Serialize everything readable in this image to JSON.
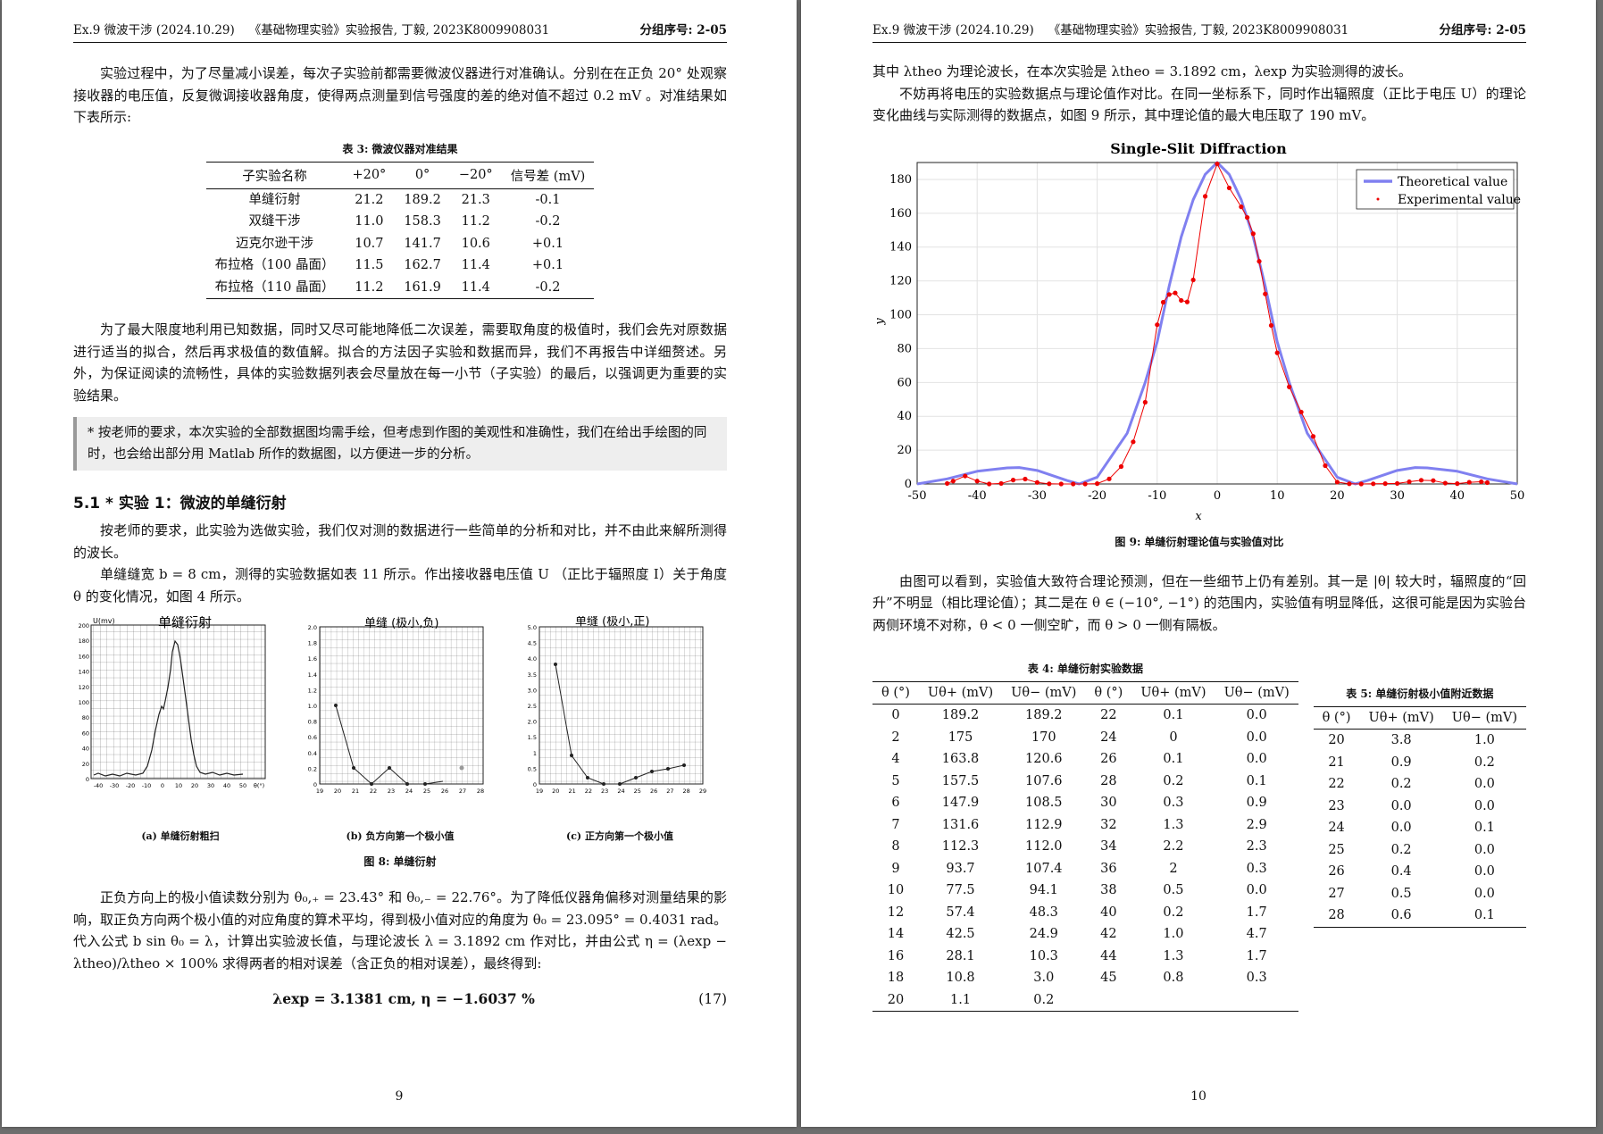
{
  "header": {
    "left1": "Ex.9 微波干涉 (2024.10.29)",
    "left2": "《基础物理实验》实验报告, 丁毅, 2023K8009908031",
    "right": "分组序号: 2-05"
  },
  "left": {
    "p1": "实验过程中，为了尽量减小误差，每次子实验前都需要微波仪器进行对准确认。分别在在正负 20° 处观察接收器的电压值，反复微调接收器角度，使得两点测量到信号强度的差的绝对值不超过 0.2 mV 。对准结果如下表所示:",
    "table3": {
      "caption": "表 3: 微波仪器对准结果",
      "headers": [
        "子实验名称",
        "+20°",
        "0°",
        "−20°",
        "信号差 (mV)"
      ],
      "rows": [
        [
          "单缝衍射",
          "21.2",
          "189.2",
          "21.3",
          "-0.1"
        ],
        [
          "双缝干涉",
          "11.0",
          "158.3",
          "11.2",
          "-0.2"
        ],
        [
          "迈克尔逊干涉",
          "10.7",
          "141.7",
          "10.6",
          "+0.1"
        ],
        [
          "布拉格（100 晶面）",
          "11.5",
          "162.7",
          "11.4",
          "+0.1"
        ],
        [
          "布拉格（110 晶面）",
          "11.2",
          "161.9",
          "11.4",
          "-0.2"
        ]
      ]
    },
    "p2": "为了最大限度地利用已知数据，同时又尽可能地降低二次误差，需要取角度的极值时，我们会先对原数据进行适当的拟合，然后再求极值的数值解。拟合的方法因子实验和数据而异，我们不再报告中详细赘述。另外，为保证阅读的流畅性，具体的实验数据列表会尽量放在每一小节（子实验）的最后，以强调更为重要的实验结果。",
    "note": "* 按老师的要求，本次实验的全部数据图均需手绘，但考虑到作图的美观性和准确性，我们在给出手绘图的同时，也会给出部分用 Matlab 所作的数据图，以方便进一步的分析。",
    "section": "5.1   * 实验 1：微波的单缝衍射",
    "p3": "按老师的要求，此实验为选做实验，我们仅对测的数据进行一些简单的分析和对比，并不由此来解所测得的波长。",
    "p4": "单缝缝宽 b = 8 cm，测得的实验数据如表 11 所示。作出接收器电压值 U （正比于辐照度 I）关于角度 θ 的变化情况，如图 4 所示。",
    "fig8": {
      "caption": "图 8: 单缝衍射",
      "a": {
        "caption": "(a) 单缝衍射粗扫",
        "title": "单缝衍射",
        "ylabel": "U(mv)",
        "yticks": [
          "200",
          "180",
          "160",
          "140",
          "120",
          "100",
          "80",
          "60",
          "40",
          "20",
          "0"
        ],
        "xticks": [
          "-40",
          "-30",
          "-20",
          "-10",
          "0",
          "10",
          "20",
          "30",
          "40",
          "50",
          "θ(°)"
        ]
      },
      "b": {
        "caption": "(b) 负方向第一个极小值",
        "title": "单缝 (极小,负)",
        "yticks": [
          "2.0",
          "1.8",
          "1.6",
          "1.4",
          "1.2",
          "1.0",
          "0.8",
          "0.6",
          "0.4",
          "0.2",
          "0"
        ],
        "xticks": [
          "19",
          "20",
          "21",
          "22",
          "23",
          "24",
          "25",
          "26",
          "27",
          "28"
        ]
      },
      "c": {
        "caption": "(c) 正方向第一个极小值",
        "title": "单缝 (极小,正)",
        "yticks": [
          "5.0",
          "4.5",
          "4.0",
          "3.5",
          "3.0",
          "2.5",
          "2.0",
          "1.5",
          "1",
          "0.5",
          "0"
        ],
        "xticks": [
          "19",
          "20",
          "21",
          "22",
          "23",
          "24",
          "25",
          "26",
          "27",
          "28",
          "29"
        ]
      }
    },
    "p5": "正负方向上的极小值读数分别为 θ₀,₊ = 23.43° 和 θ₀,₋ = 22.76°。为了降低仪器角偏移对测量结果的影响，取正负方向两个极小值的对应角度的算术平均，得到极小值对应的角度为 θ₀ = 23.095° = 0.4031 rad。代入公式 b sin θ₀ = λ，计算出实验波长值，与理论波长 λ = 3.1892 cm 作对比，并由公式 η = (λexp − λtheo)/λtheo × 100% 求得两者的相对误差（含正负的相对误差），最终得到:",
    "eq": "λexp = 3.1381 cm,    η = −1.6037 %",
    "eqnum": "(17)",
    "page_number": "9"
  },
  "right": {
    "p1": "其中 λtheo 为理论波长，在本次实验是 λtheo = 3.1892 cm，λexp 为实验测得的波长。",
    "p2": "不妨再将电压的实验数据点与理论值作对比。在同一坐标系下，同时作出辐照度（正比于电压 U）的理论变化曲线与实际测得的数据点，如图 9 所示，其中理论值的最大电压取了 190 mV。",
    "fig9_caption": "图 9: 单缝衍射理论值与实验值对比",
    "p3": "由图可以看到，实验值大致符合理论预测，但在一些细节上仍有差别。其一是 |θ| 较大时，辐照度的“回升”不明显（相比理论值）；其二是在 θ ∈ (−10°, −1°) 的范围内，实验值有明显降低，这很可能是因为实验台两侧环境不对称，θ < 0 一侧空旷，而 θ > 0 一侧有隔板。",
    "table4": {
      "caption": "表 4: 单缝衍射实验数据",
      "headers": [
        "θ (°)",
        "Uθ+ (mV)",
        "Uθ− (mV)",
        "θ (°)",
        "Uθ+ (mV)",
        "Uθ− (mV)"
      ],
      "rows": [
        [
          "0",
          "189.2",
          "189.2",
          "22",
          "0.1",
          "0.0"
        ],
        [
          "2",
          "175",
          "170",
          "24",
          "0",
          "0.0"
        ],
        [
          "4",
          "163.8",
          "120.6",
          "26",
          "0.1",
          "0.0"
        ],
        [
          "5",
          "157.5",
          "107.6",
          "28",
          "0.2",
          "0.1"
        ],
        [
          "6",
          "147.9",
          "108.5",
          "30",
          "0.3",
          "0.9"
        ],
        [
          "7",
          "131.6",
          "112.9",
          "32",
          "1.3",
          "2.9"
        ],
        [
          "8",
          "112.3",
          "112.0",
          "34",
          "2.2",
          "2.3"
        ],
        [
          "9",
          "93.7",
          "107.4",
          "36",
          "2",
          "0.3"
        ],
        [
          "10",
          "77.5",
          "94.1",
          "38",
          "0.5",
          "0.0"
        ],
        [
          "12",
          "57.4",
          "48.3",
          "40",
          "0.2",
          "1.7"
        ],
        [
          "14",
          "42.5",
          "24.9",
          "42",
          "1.0",
          "4.7"
        ],
        [
          "16",
          "28.1",
          "10.3",
          "44",
          "1.3",
          "1.7"
        ],
        [
          "18",
          "10.8",
          "3.0",
          "45",
          "0.8",
          "0.3"
        ],
        [
          "20",
          "1.1",
          "0.2",
          "",
          "",
          ""
        ]
      ]
    },
    "table5": {
      "caption": "表 5: 单缝衍射极小值附近数据",
      "headers": [
        "θ (°)",
        "Uθ+ (mV)",
        "Uθ− (mV)"
      ],
      "rows": [
        [
          "20",
          "3.8",
          "1.0"
        ],
        [
          "21",
          "0.9",
          "0.2"
        ],
        [
          "22",
          "0.2",
          "0.0"
        ],
        [
          "23",
          "0.0",
          "0.0"
        ],
        [
          "24",
          "0.0",
          "0.1"
        ],
        [
          "25",
          "0.2",
          "0.0"
        ],
        [
          "26",
          "0.4",
          "0.0"
        ],
        [
          "27",
          "0.5",
          "0.0"
        ],
        [
          "28",
          "0.6",
          "0.1"
        ]
      ]
    },
    "page_number": "10"
  },
  "chart_data": {
    "type": "line",
    "title": "Single-Slit Diffraction",
    "xlabel": "x",
    "ylabel": "y",
    "xlim": [
      -50,
      50
    ],
    "ylim": [
      0,
      190
    ],
    "xticks": [
      -50,
      -40,
      -30,
      -20,
      -10,
      0,
      10,
      20,
      30,
      40,
      50
    ],
    "yticks": [
      0,
      20,
      40,
      60,
      80,
      100,
      120,
      140,
      160,
      180
    ],
    "grid": true,
    "legend_position": "top-right",
    "series": [
      {
        "name": "Theoretical value",
        "color": "#8080f0",
        "kind": "line",
        "x": [
          -50,
          -45,
          -40,
          -35,
          -33,
          -30,
          -25,
          -23,
          -20,
          -15,
          -12,
          -10,
          -8,
          -6,
          -4,
          -2,
          0,
          2,
          4,
          6,
          8,
          10,
          12,
          15,
          20,
          23,
          25,
          30,
          33,
          35,
          40,
          45,
          50
        ],
        "y": [
          0,
          3,
          7.5,
          9.5,
          9.7,
          8,
          2,
          0,
          4,
          30,
          60,
          84,
          117,
          146,
          168,
          183,
          190,
          183,
          168,
          146,
          117,
          84,
          60,
          30,
          4,
          0,
          2,
          8,
          9.7,
          9.5,
          7.5,
          3,
          0
        ]
      },
      {
        "name": "Experimental value",
        "color": "#ee0000",
        "kind": "line+points",
        "x": [
          -45,
          -44,
          -42,
          -40,
          -38,
          -36,
          -34,
          -32,
          -30,
          -28,
          -26,
          -24,
          -22,
          -20,
          -18,
          -16,
          -14,
          -12,
          -10,
          -9,
          -8,
          -7,
          -6,
          -5,
          -4,
          -2,
          0,
          2,
          4,
          5,
          6,
          7,
          8,
          9,
          10,
          12,
          14,
          16,
          18,
          20,
          22,
          24,
          26,
          28,
          30,
          32,
          34,
          36,
          38,
          40,
          42,
          44,
          45
        ],
        "y": [
          0.3,
          1.7,
          4.7,
          1.7,
          0,
          0.3,
          2.3,
          2.9,
          0.9,
          0.1,
          0,
          0,
          0,
          0.2,
          3,
          10.3,
          24.9,
          48.3,
          94.1,
          107.4,
          112,
          112.9,
          108.5,
          107.6,
          120.6,
          170,
          189.2,
          175,
          163.8,
          157.5,
          147.9,
          131.6,
          112.3,
          93.7,
          77.5,
          57.4,
          42.5,
          28.1,
          10.8,
          1.1,
          0.1,
          0,
          0.1,
          0.2,
          0.3,
          1.3,
          2.2,
          2,
          0.5,
          0.2,
          1,
          1.3,
          0.8
        ]
      }
    ]
  },
  "colors": {
    "theory": "#8080f0",
    "experiment": "#ee0000",
    "viewer_bg": "#6e6e6e",
    "note_bg": "#eeeeee"
  }
}
